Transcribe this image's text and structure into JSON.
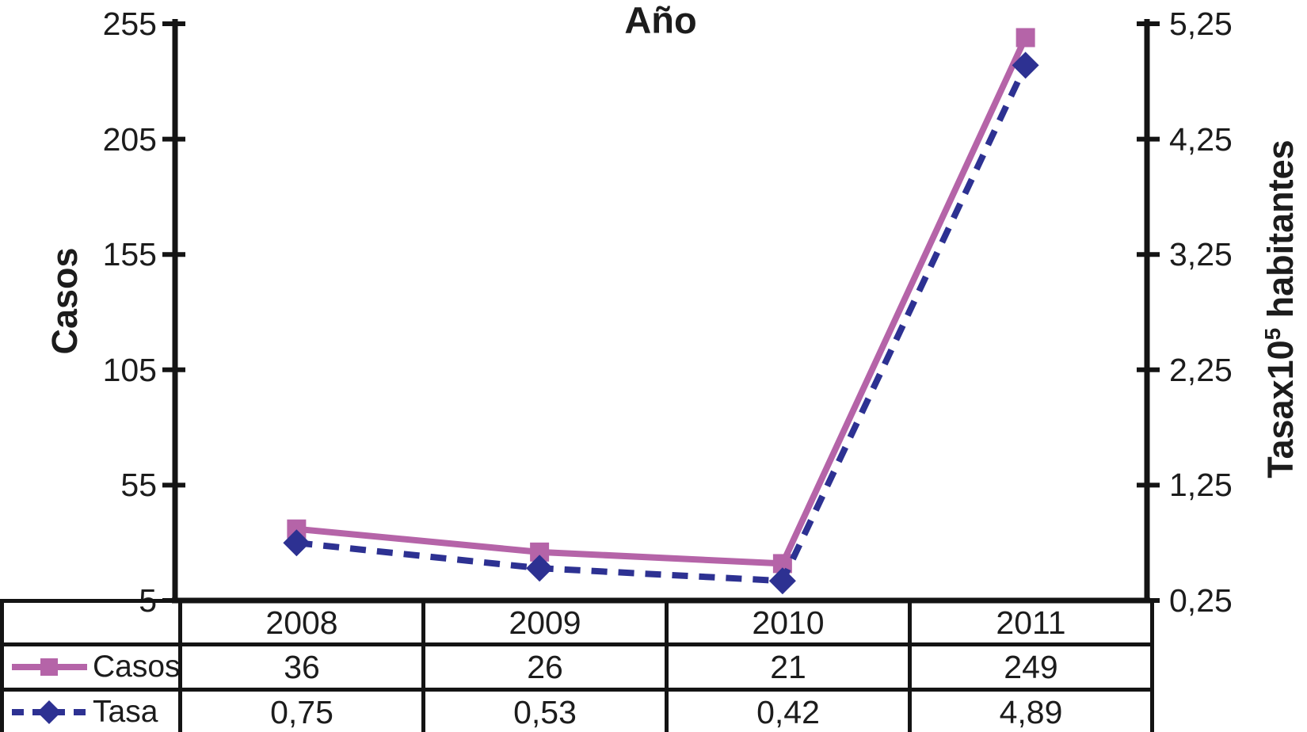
{
  "chart_data": {
    "type": "line",
    "title": "Año",
    "categories": [
      "2008",
      "2009",
      "2010",
      "2011"
    ],
    "series": [
      {
        "name": "Casos",
        "axis": "left",
        "values": [
          36,
          26,
          21,
          249
        ],
        "style": "solid",
        "marker": "square",
        "color": "#b564a8"
      },
      {
        "name": "Tasa",
        "axis": "right",
        "values": [
          0.75,
          0.53,
          0.42,
          4.89
        ],
        "style": "dashed",
        "marker": "diamond",
        "color": "#2d3192"
      }
    ],
    "left_axis": {
      "label": "Casos",
      "ticks": [
        "255",
        "205",
        "155",
        "105",
        "55",
        "5"
      ],
      "min": 5,
      "max": 255
    },
    "right_axis": {
      "label_main": "Tasax10",
      "label_sup": "5",
      "label_rest": " habitantes",
      "ticks": [
        "5,25",
        "4,25",
        "3,25",
        "2,25",
        "1,25",
        "0,25"
      ],
      "min": 0.25,
      "max": 5.25
    },
    "grid": false,
    "legend_position": "table-left",
    "axis_color": "#141414"
  },
  "table": {
    "rows": [
      {
        "label": "Casos",
        "values": [
          "36",
          "26",
          "21",
          "249"
        ]
      },
      {
        "label": "Tasa",
        "values": [
          "0,75",
          "0,53",
          "0,42",
          "4,89"
        ]
      }
    ]
  }
}
